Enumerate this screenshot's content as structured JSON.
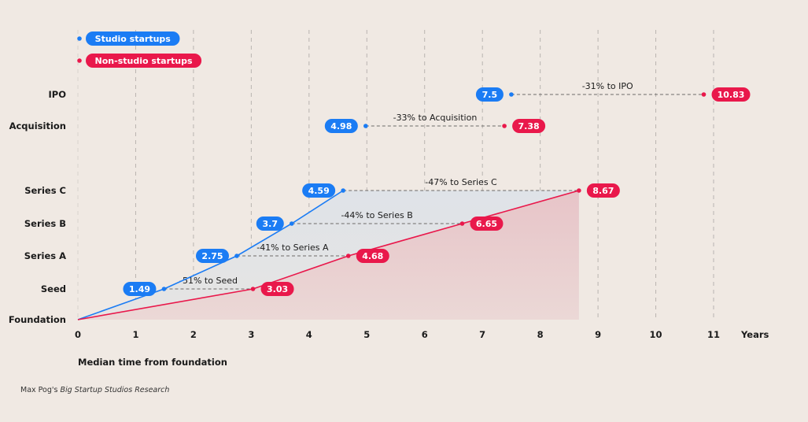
{
  "chart_data": {
    "type": "line",
    "xlabel": "Median time from foundation",
    "x_unit_label": "Years",
    "xlim": [
      0,
      11
    ],
    "x_ticks": [
      0,
      1,
      2,
      3,
      4,
      5,
      6,
      7,
      8,
      9,
      10,
      11
    ],
    "grid": true,
    "legend_placement": "top-left",
    "stages": [
      "Foundation",
      "Seed",
      "Series A",
      "Series B",
      "Series C",
      "Acquisition",
      "IPO"
    ],
    "series": [
      {
        "name": "Studio startups",
        "color": "#1b7cf4",
        "values": [
          0,
          1.49,
          2.75,
          3.7,
          4.59,
          4.98,
          7.5
        ],
        "labels": [
          "",
          "1.49",
          "2.75",
          "3.7",
          "4.59",
          "4.98",
          "7.5"
        ]
      },
      {
        "name": "Non-studio startups",
        "color": "#e9184b",
        "values": [
          0,
          3.03,
          4.68,
          6.65,
          8.67,
          7.38,
          10.83
        ],
        "labels": [
          "",
          "3.03",
          "4.68",
          "6.65",
          "8.67",
          "7.38",
          "10.83"
        ]
      }
    ],
    "annotations": [
      "",
      "-51% to Seed",
      "-41% to Series A",
      "-44% to Series B",
      "-47% to Series C",
      "-33% to Acquisition",
      "-31% to IPO"
    ]
  },
  "source": {
    "prefix": "Max Pog's ",
    "title": "Big Startup Studios Research"
  }
}
